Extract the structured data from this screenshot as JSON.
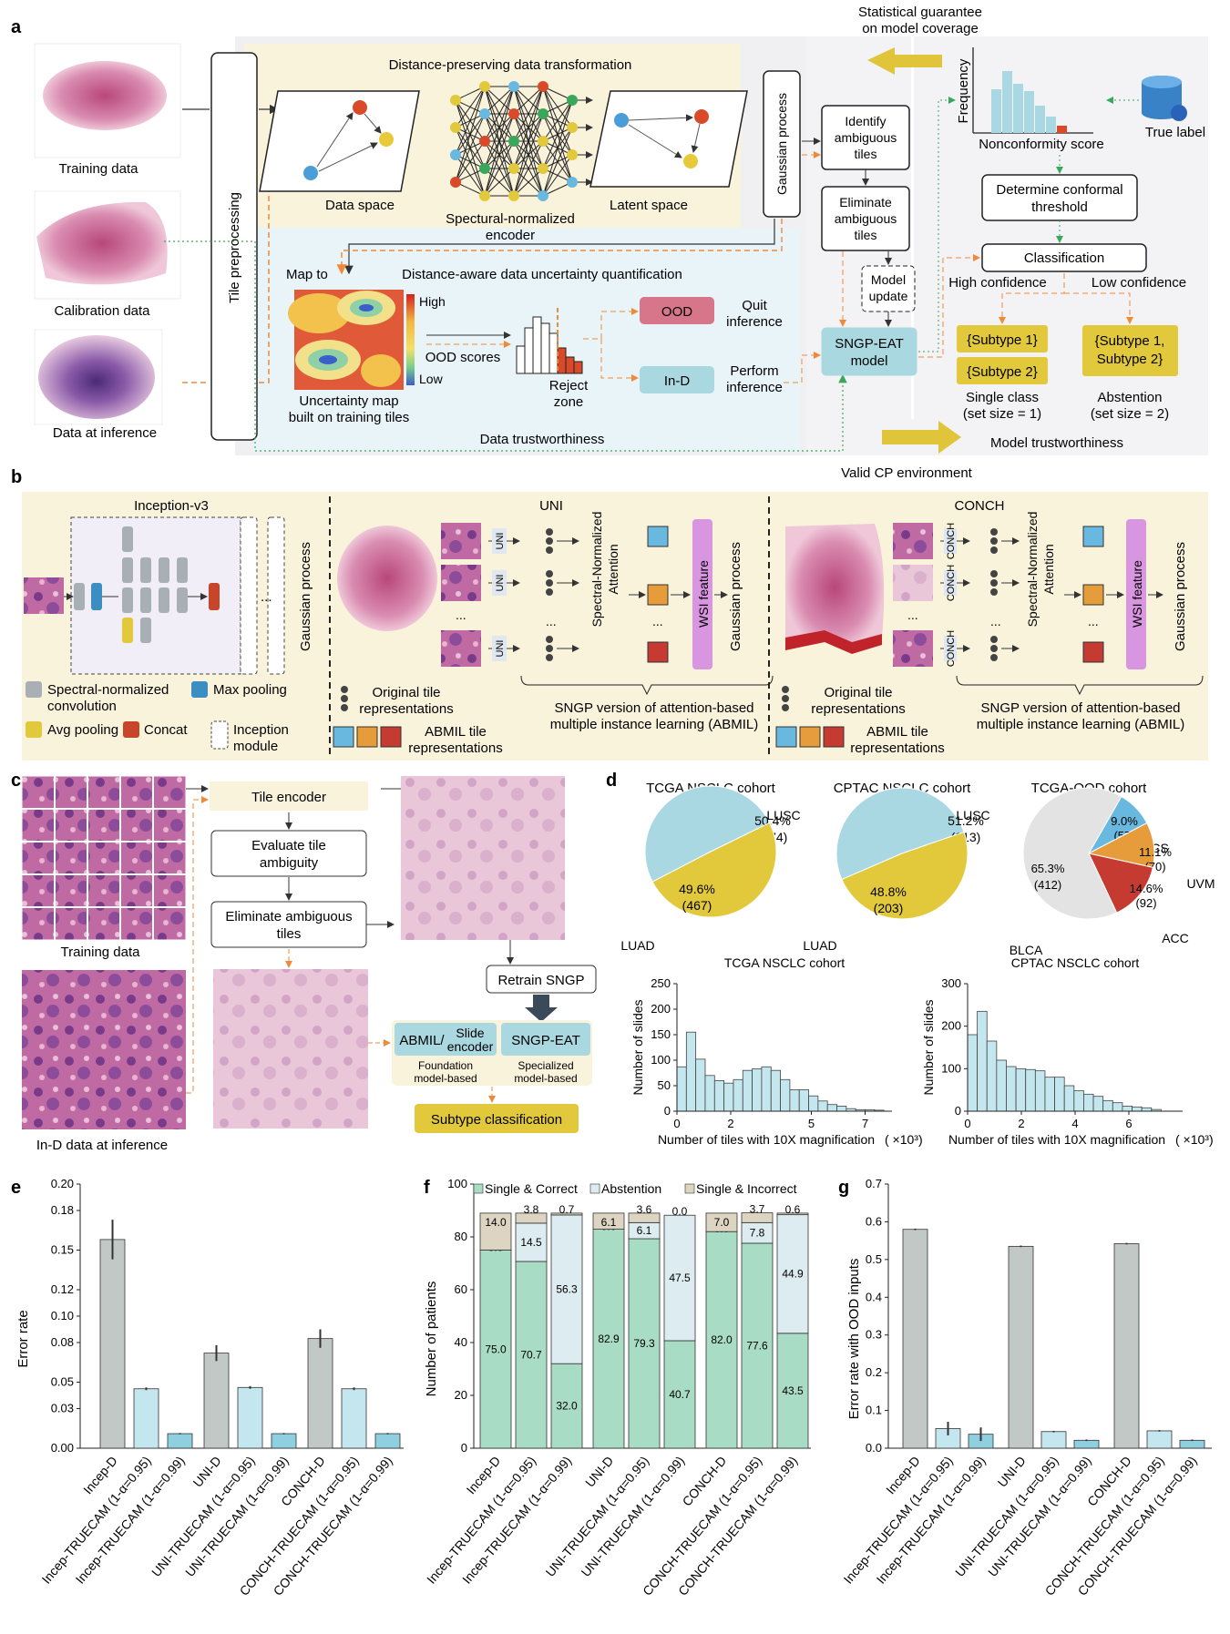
{
  "panel_labels": {
    "a": "a",
    "b": "b",
    "c": "c",
    "d": "d",
    "e": "e",
    "f": "f",
    "g": "g"
  },
  "a": {
    "statistical_guarantee": [
      "Statistical guarantee",
      "on model coverage"
    ],
    "distance_preserving": "Distance-preserving data transformation",
    "training_data": "Training data",
    "calibration_data": "Calibration data",
    "data_at_inference": "Data at inference",
    "tile_preprocessing": "Tile preprocessing",
    "data_space": "Data space",
    "encoder": [
      "Spectural-normalized",
      "encoder"
    ],
    "latent_space": "Latent space",
    "gaussian_process": "Gaussian process",
    "identify": [
      "Identify",
      "ambiguous",
      "tiles"
    ],
    "eliminate": [
      "Eliminate",
      "ambiguous",
      "tiles"
    ],
    "model_update": [
      "Model",
      "update"
    ],
    "sngp_eat": [
      "SNGP-EAT",
      "model"
    ],
    "map_to": "Map to",
    "distance_aware": "Distance-aware data uncertainty quantification",
    "high": "High",
    "low": "Low",
    "ood_scores": "OOD scores",
    "uncertainty_map": [
      "Uncertainty map",
      "built on training tiles"
    ],
    "reject_zone": [
      "Reject",
      "zone"
    ],
    "ood": "OOD",
    "quit_inference": [
      "Quit",
      "inference"
    ],
    "in_d": "In-D",
    "perform_inference": [
      "Perform",
      "inference"
    ],
    "data_trustworthiness": "Data trustworthiness",
    "frequency": "Frequency",
    "nonconformity": "Nonconformity score",
    "true_label": "True label",
    "determine_threshold": [
      "Determine conformal",
      "threshold"
    ],
    "classification": "Classification",
    "high_confidence": "High confidence",
    "low_confidence": "Low confidence",
    "subtype1": "{Subtype 1}",
    "subtype2": "{Subtype 2}",
    "subtype12": [
      "{Subtype 1,",
      "Subtype 2}"
    ],
    "single_class": [
      "Single class",
      "(set size = 1)"
    ],
    "abstention": [
      "Abstention",
      "(set size = 2)"
    ],
    "model_trustworthiness": "Model trustworthiness",
    "valid_cp": "Valid CP environment"
  },
  "b": {
    "inception": "Inception-v3",
    "gaussian_process": "Gaussian process",
    "uni": "UNI",
    "conch": "CONCH",
    "spectral_attention": [
      "Spectral-Normalized",
      "Attention"
    ],
    "wsi_feature": "WSI feature",
    "legend_conv": [
      "Spectral-normalized",
      "convolution"
    ],
    "legend_maxpool": "Max pooling",
    "legend_avgpool": "Avg pooling",
    "legend_concat": "Concat",
    "legend_inception": [
      "Inception",
      "module"
    ],
    "original_tile": [
      "Original tile",
      "representations"
    ],
    "abmil_tile": [
      "ABMIL tile",
      "representations"
    ],
    "sngp_version": [
      "SNGP version of attention-based",
      "multiple instance learning (ABMIL)"
    ],
    "uni_label": "UNI",
    "conch_label": "CONCH",
    "ellipsis": "..."
  },
  "c": {
    "tile_encoder": "Tile encoder",
    "evaluate": [
      "Evaluate tile",
      "ambiguity"
    ],
    "eliminate": [
      "Eliminate ambiguous",
      "tiles"
    ],
    "training_data": "Training data",
    "ind_inference": "In-D data at inference",
    "retrain": "Retrain SNGP",
    "abmil": "ABMIL/",
    "slide_encoder": [
      "Slide",
      "encoder"
    ],
    "sngp_eat": "SNGP-EAT",
    "foundation": [
      "Foundation",
      "model-based"
    ],
    "specialized": [
      "Specialized",
      "model-based"
    ],
    "subtype_classification": "Subtype classification"
  },
  "d": {
    "pies": [
      {
        "title": "TCGA NSCLC cohort",
        "slices": [
          {
            "name": "LUSC",
            "pct": "50.4%",
            "n": "(474)",
            "value": 474,
            "color": "#a9d8e2"
          },
          {
            "name": "LUAD",
            "pct": "49.6%",
            "n": "(467)",
            "value": 467,
            "color": "#e2c93c"
          }
        ]
      },
      {
        "title": "CPTAC NSCLC cohort",
        "slices": [
          {
            "name": "LUSC",
            "pct": "51.2%",
            "n": "(213)",
            "value": 213,
            "color": "#a9d8e2"
          },
          {
            "name": "LUAD",
            "pct": "48.8%",
            "n": "(203)",
            "value": 203,
            "color": "#e2c93c"
          }
        ]
      },
      {
        "title": "TCGA-OOD cohort",
        "slices": [
          {
            "name": "UCS",
            "pct": "9.0%",
            "n": "(57)",
            "value": 57,
            "color": "#68b8df"
          },
          {
            "name": "UVM",
            "pct": "11.1%",
            "n": "(70)",
            "value": 70,
            "color": "#e79c3b"
          },
          {
            "name": "ACC",
            "pct": "14.6%",
            "n": "(92)",
            "value": 92,
            "color": "#c53b32"
          },
          {
            "name": "BLCA",
            "pct": "65.3%",
            "n": "(412)",
            "value": 412,
            "color": "#e3e3e3"
          }
        ]
      }
    ],
    "hist_ylabel": "Number of slides",
    "hist_xlabel": "Number of tiles with 10X magnification",
    "hist_unit": "( ×10³)"
  },
  "e": {
    "ylabel": "Error rate"
  },
  "f": {
    "ylabel": "Number of patients"
  },
  "g": {
    "ylabel": "Error rate with OOD inputs"
  },
  "chart_data": [
    {
      "type": "pie",
      "title": "TCGA NSCLC cohort",
      "labels": [
        "LUSC",
        "LUAD"
      ],
      "values": [
        474,
        467
      ],
      "percent": [
        50.4,
        49.6
      ]
    },
    {
      "type": "pie",
      "title": "CPTAC NSCLC cohort",
      "labels": [
        "LUSC",
        "LUAD"
      ],
      "values": [
        213,
        203
      ],
      "percent": [
        51.2,
        48.8
      ]
    },
    {
      "type": "pie",
      "title": "TCGA-OOD cohort",
      "labels": [
        "UCS",
        "UVM",
        "ACC",
        "BLCA"
      ],
      "values": [
        57,
        70,
        92,
        412
      ],
      "percent": [
        9.0,
        11.1,
        14.6,
        65.3
      ]
    },
    {
      "type": "bar",
      "title": "TCGA NSCLC cohort",
      "xlabel": "Number of tiles with 10X magnification (×10³)",
      "ylabel": "Number of slides",
      "xlim": [
        0,
        8
      ],
      "ylim": [
        0,
        250
      ],
      "xticks": [
        0,
        2,
        5,
        7
      ],
      "yticks": [
        0,
        50,
        100,
        150,
        200,
        250
      ],
      "bin_width": 0.35,
      "x": [
        0.0,
        0.35,
        0.7,
        1.05,
        1.4,
        1.75,
        2.1,
        2.45,
        2.8,
        3.15,
        3.5,
        3.85,
        4.2,
        4.55,
        4.9,
        5.25,
        5.6,
        5.95,
        6.3,
        6.65,
        7.0,
        7.35
      ],
      "values": [
        87,
        155,
        102,
        70,
        60,
        55,
        62,
        80,
        83,
        87,
        80,
        62,
        42,
        42,
        30,
        20,
        13,
        10,
        5,
        3,
        3,
        2
      ]
    },
    {
      "type": "bar",
      "title": "CPTAC NSCLC cohort",
      "xlabel": "Number of tiles with 10X magnification (×10³)",
      "ylabel": "Number of slides",
      "xlim": [
        0,
        8
      ],
      "ylim": [
        0,
        300
      ],
      "xticks": [
        0,
        2,
        4,
        6
      ],
      "yticks": [
        0,
        100,
        200,
        300
      ],
      "bin_width": 0.36,
      "x": [
        0.0,
        0.36,
        0.72,
        1.08,
        1.44,
        1.8,
        2.16,
        2.52,
        2.88,
        3.24,
        3.6,
        3.96,
        4.32,
        4.68,
        5.04,
        5.4,
        5.76,
        6.12,
        6.48,
        6.84
      ],
      "values": [
        180,
        235,
        165,
        120,
        105,
        100,
        98,
        95,
        80,
        80,
        60,
        48,
        40,
        35,
        25,
        20,
        12,
        10,
        8,
        4
      ]
    },
    {
      "type": "bar",
      "title": "Error rate",
      "categories": [
        "Incep-D",
        "Incep-TRUECAM (1-α=0.95)",
        "Incep-TRUECAM (1-α=0.99)",
        "UNI-D",
        "UNI-TRUECAM (1-α=0.95)",
        "UNI-TRUECAM (1-α=0.99)",
        "CONCH-D",
        "CONCH-TRUECAM (1-α=0.95)",
        "CONCH-TRUECAM (1-α=0.99)"
      ],
      "values": [
        0.158,
        0.045,
        0.011,
        0.072,
        0.046,
        0.011,
        0.083,
        0.045,
        0.011
      ],
      "errors": [
        0.015,
        0.001,
        0.0005,
        0.006,
        0.001,
        0.0005,
        0.007,
        0.001,
        0.0005
      ],
      "ylabel": "Error rate",
      "ylim": [
        0,
        0.2
      ],
      "yticks": [
        "0.00",
        "0.03",
        "0.05",
        "0.08",
        "0.10",
        "0.12",
        "0.15",
        "0.18",
        "0.20"
      ]
    },
    {
      "type": "bar",
      "stacked": true,
      "ylabel": "Number of patients",
      "ylim": [
        0,
        100
      ],
      "yticks": [
        0,
        20,
        40,
        60,
        80,
        100
      ],
      "categories": [
        "Incep-D",
        "Incep-TRUECAM (1-α=0.95)",
        "Incep-TRUECAM (1-α=0.99)",
        "UNI-D",
        "UNI-TRUECAM (1-α=0.95)",
        "UNI-TRUECAM (1-α=0.99)",
        "CONCH-D",
        "CONCH-TRUECAM (1-α=0.95)",
        "CONCH-TRUECAM (1-α=0.99)"
      ],
      "series": [
        {
          "name": "Single & Correct",
          "color": "#a9dcc4",
          "values": [
            75.0,
            70.7,
            32.0,
            82.9,
            79.3,
            40.7,
            82.0,
            77.6,
            43.5
          ],
          "labels": [
            "75.0",
            "70.7",
            "32.0",
            "82.9",
            "79.3",
            "40.7",
            "82.0",
            "77.6",
            "43.5"
          ]
        },
        {
          "name": "Abstention",
          "color": "#dcecf0",
          "values": [
            0.0,
            14.5,
            56.3,
            0.0,
            6.1,
            47.5,
            0.0,
            7.8,
            44.9
          ],
          "labels": [
            "0.0",
            "14.5",
            "56.3",
            "0.0",
            "6.1",
            "47.5",
            "0.0",
            "7.8",
            "44.9"
          ]
        },
        {
          "name": "Single & Incorrect",
          "color": "#ddd4c2",
          "values": [
            14.0,
            3.8,
            0.7,
            6.1,
            3.6,
            0.0,
            7.0,
            3.7,
            0.6
          ],
          "labels": [
            "14.0",
            "3.8",
            "0.7",
            "6.1",
            "3.6",
            "0.0",
            "7.0",
            "3.7",
            "0.6"
          ]
        }
      ]
    },
    {
      "type": "bar",
      "ylabel": "Error rate with OOD inputs",
      "ylim": [
        0,
        0.7
      ],
      "yticks": [
        "0.0",
        "0.1",
        "0.2",
        "0.3",
        "0.4",
        "0.5",
        "0.6",
        "0.7"
      ],
      "categories": [
        "Incep-D",
        "Incep-TRUECAM (1-α=0.95)",
        "Incep-TRUECAM (1-α=0.99)",
        "UNI-D",
        "UNI-TRUECAM (1-α=0.95)",
        "UNI-TRUECAM (1-α=0.99)",
        "CONCH-D",
        "CONCH-TRUECAM (1-α=0.95)",
        "CONCH-TRUECAM (1-α=0.99)"
      ],
      "values": [
        0.58,
        0.052,
        0.037,
        0.535,
        0.044,
        0.021,
        0.542,
        0.046,
        0.021
      ],
      "errors": [
        0.002,
        0.018,
        0.018,
        0.002,
        0.002,
        0.002,
        0.002,
        0.002,
        0.002
      ]
    }
  ]
}
